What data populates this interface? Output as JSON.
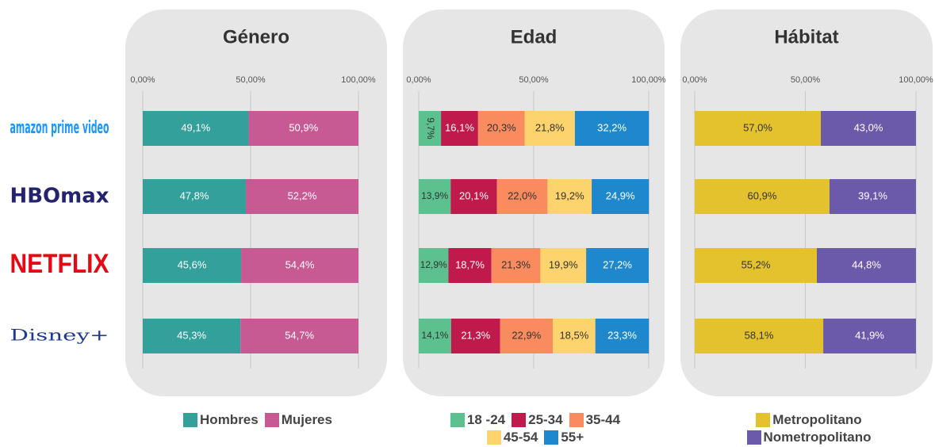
{
  "chart_data": [
    {
      "type": "stacked-bar-horizontal",
      "title": "Género",
      "categories": [
        "amazon prime video",
        "HBOmax",
        "NETFLIX",
        "Disney+"
      ],
      "xlim": [
        0,
        100
      ],
      "xticks": [
        {
          "value": 0,
          "label": "0,00%"
        },
        {
          "value": 50,
          "label": "50,00%"
        },
        {
          "value": 100,
          "label": "100,00%"
        }
      ],
      "grid": true,
      "series": [
        {
          "name": "Hombres",
          "color": "#33a09b",
          "values": [
            49.1,
            47.8,
            45.6,
            45.3
          ],
          "value_labels": [
            "49,1%",
            "47,8%",
            "45,6%",
            "45,3%"
          ]
        },
        {
          "name": "Mujeres",
          "color": "#c85a93",
          "values": [
            50.9,
            52.2,
            54.4,
            54.7
          ],
          "value_labels": [
            "50,9%",
            "52,2%",
            "54,4%",
            "54,7%"
          ]
        }
      ]
    },
    {
      "type": "stacked-bar-horizontal",
      "title": "Edad",
      "categories": [
        "amazon prime video",
        "HBOmax",
        "NETFLIX",
        "Disney+"
      ],
      "xlim": [
        0,
        100
      ],
      "xticks": [
        {
          "value": 0,
          "label": "0,00%"
        },
        {
          "value": 50,
          "label": "50,00%"
        },
        {
          "value": 100,
          "label": "100,00%"
        }
      ],
      "grid": true,
      "series": [
        {
          "name": "18 -24",
          "color": "#5cc08f",
          "values": [
            9.7,
            13.9,
            12.9,
            14.1
          ],
          "value_labels": [
            "9,7%",
            "13,9%",
            "12,9%",
            "14,1%"
          ]
        },
        {
          "name": "25-34",
          "color": "#c0194b",
          "values": [
            16.1,
            20.1,
            18.7,
            21.3
          ],
          "value_labels": [
            "16,1%",
            "20,1%",
            "18,7%",
            "21,3%"
          ]
        },
        {
          "name": "35-44",
          "color": "#f98b5e",
          "values": [
            20.3,
            22.0,
            21.3,
            22.9
          ],
          "value_labels": [
            "20,3%",
            "22,0%",
            "21,3%",
            "22,9%"
          ]
        },
        {
          "name": "45-54",
          "color": "#fdd36d",
          "values": [
            21.8,
            19.2,
            19.9,
            18.5
          ],
          "value_labels": [
            "21,8%",
            "19,2%",
            "19,9%",
            "18,5%"
          ]
        },
        {
          "name": "55+",
          "color": "#1f88cc",
          "values": [
            32.2,
            24.9,
            27.2,
            23.3
          ],
          "value_labels": [
            "32,2%",
            "24,9%",
            "27,2%",
            "23,3%"
          ]
        }
      ]
    },
    {
      "type": "stacked-bar-horizontal",
      "title": "Hábitat",
      "categories": [
        "amazon prime video",
        "HBOmax",
        "NETFLIX",
        "Disney+"
      ],
      "xlim": [
        0,
        100
      ],
      "xticks": [
        {
          "value": 0,
          "label": "0,00%"
        },
        {
          "value": 50,
          "label": "50,00%"
        },
        {
          "value": 100,
          "label": "100,00%"
        }
      ],
      "grid": true,
      "series": [
        {
          "name": "Metropolitano",
          "color": "#e4c22e",
          "values": [
            57.0,
            60.9,
            55.2,
            58.1
          ],
          "value_labels": [
            "57,0%",
            "60,9%",
            "55,2%",
            "58,1%"
          ]
        },
        {
          "name": "Nometropolitano",
          "color": "#6b5aaa",
          "values": [
            43.0,
            39.1,
            44.8,
            41.9
          ],
          "value_labels": [
            "43,0%",
            "39,1%",
            "44,8%",
            "41,9%"
          ]
        }
      ]
    }
  ]
}
